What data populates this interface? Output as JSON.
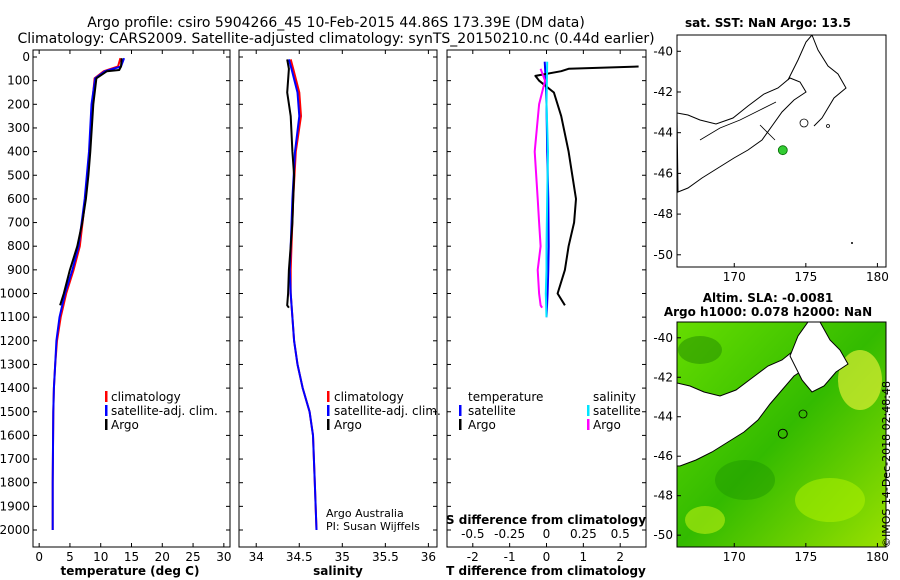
{
  "title": {
    "line1": "Argo profile: csiro 5904266_45 10-Feb-2015 44.86S 173.39E (DM data)",
    "line2": "Climatology: CARS2009. Satellite-adjusted climatology: synTS_20150210.nc (0.44d earlier)"
  },
  "colors": {
    "climatology": "#ff0000",
    "satellite": "#0000ff",
    "argo": "#000000",
    "sal_satellite": "#00e5ff",
    "sal_argo": "#ff00ff",
    "land": "#ffffff",
    "ocean_green": "#33cc00",
    "spot": "#33cc33"
  },
  "chart_data": [
    {
      "type": "line",
      "id": "temperature",
      "xlabel": "temperature (deg C)",
      "xlim": [
        -1,
        31
      ],
      "xticks": [
        0,
        5,
        10,
        15,
        20,
        25,
        30
      ],
      "xticklabels": [
        "0",
        "5",
        "10",
        "15",
        "20",
        "25",
        "30"
      ],
      "ylim": [
        2050,
        0
      ],
      "yticks": [
        0,
        100,
        200,
        300,
        400,
        500,
        600,
        700,
        800,
        900,
        1000,
        1100,
        1200,
        1300,
        1400,
        1500,
        1600,
        1700,
        1800,
        1900,
        2000
      ],
      "yticklabels": [
        "0",
        "100",
        "200",
        "300",
        "400",
        "500",
        "600",
        "700",
        "800",
        "900",
        "1000",
        "1100",
        "1200",
        "1300",
        "1400",
        "1500",
        "1600",
        "1700",
        "1800",
        "1900",
        "2000"
      ],
      "legend": [
        "climatology",
        "satellite-adj. clim.",
        "Argo"
      ],
      "series": [
        {
          "name": "climatology",
          "color": "#ff0000",
          "x": [
            13.2,
            12.8,
            10.5,
            9.0,
            8.6,
            8.2,
            7.5,
            6.6,
            5.6,
            4.4,
            3.5,
            2.9,
            2.6,
            2.4,
            2.3,
            2.2,
            2.2
          ],
          "y": [
            5,
            40,
            60,
            90,
            200,
            400,
            600,
            800,
            900,
            1000,
            1100,
            1200,
            1300,
            1400,
            1500,
            1800,
            2000
          ]
        },
        {
          "name": "satellite-adj. clim.",
          "color": "#0000ff",
          "x": [
            13.8,
            13.3,
            10.7,
            9.1,
            8.5,
            8.1,
            7.4,
            6.4,
            5.4,
            4.2,
            3.3,
            2.8,
            2.6,
            2.4,
            2.3,
            2.2,
            2.2
          ],
          "y": [
            5,
            40,
            60,
            90,
            200,
            400,
            600,
            800,
            900,
            1000,
            1100,
            1200,
            1300,
            1400,
            1500,
            1800,
            2000
          ]
        },
        {
          "name": "Argo",
          "color": "#000000",
          "x": [
            13.4,
            13.3,
            13.0,
            11.0,
            9.3,
            8.8,
            8.3,
            8.0,
            7.6,
            7.0,
            6.2,
            5.0,
            4.0,
            3.4
          ],
          "y": [
            5,
            40,
            55,
            60,
            90,
            200,
            400,
            500,
            600,
            700,
            800,
            900,
            1000,
            1050
          ]
        }
      ]
    },
    {
      "type": "line",
      "id": "salinity",
      "xlabel": "salinity",
      "xlim": [
        33.8,
        36.1
      ],
      "xticks": [
        34,
        34.5,
        35,
        35.5,
        36
      ],
      "xticklabels": [
        "34",
        "34.5",
        "35",
        "35.5",
        "36"
      ],
      "ylim": [
        2050,
        0
      ],
      "legend": [
        "climatology",
        "satellite-adj. clim.",
        "Argo"
      ],
      "note_line1": "Argo Australia",
      "note_line2": "PI: Susan Wijffels",
      "series": [
        {
          "name": "climatology",
          "color": "#ff0000",
          "x": [
            34.4,
            34.43,
            34.5,
            34.52,
            34.46,
            34.43,
            34.41,
            34.4,
            34.4,
            34.42,
            34.44,
            34.48,
            34.54,
            34.62,
            34.66,
            34.68,
            34.7
          ],
          "y": [
            10,
            50,
            150,
            250,
            400,
            600,
            800,
            900,
            1000,
            1100,
            1200,
            1300,
            1400,
            1500,
            1600,
            1800,
            2000
          ]
        },
        {
          "name": "satellite-adj. clim.",
          "color": "#0000ff",
          "x": [
            34.38,
            34.41,
            34.48,
            34.5,
            34.45,
            34.42,
            34.4,
            34.39,
            34.4,
            34.42,
            34.44,
            34.48,
            34.54,
            34.62,
            34.66,
            34.68,
            34.7
          ],
          "y": [
            10,
            50,
            150,
            250,
            400,
            600,
            800,
            900,
            1000,
            1100,
            1200,
            1300,
            1400,
            1500,
            1600,
            1800,
            2000
          ]
        },
        {
          "name": "Argo",
          "color": "#000000",
          "x": [
            34.36,
            34.38,
            34.36,
            34.4,
            34.42,
            34.44,
            34.43,
            34.42,
            34.4,
            34.38,
            34.37,
            34.36,
            34.38
          ],
          "y": [
            10,
            50,
            150,
            250,
            400,
            500,
            600,
            700,
            800,
            900,
            1000,
            1050,
            1060
          ]
        }
      ]
    },
    {
      "type": "line",
      "id": "difference",
      "xlabel": "T difference from climatology",
      "xlim": [
        -2.7,
        2.7
      ],
      "xticks": [
        -2,
        -1,
        0,
        1,
        2
      ],
      "xticklabels": [
        "-2",
        "-1",
        "0",
        "1",
        "2"
      ],
      "secondary_xlabel": "S difference from climatology",
      "secondary_xticks": [
        -0.5,
        -0.25,
        0,
        0.25,
        0.5
      ],
      "secondary_xticklabels": [
        "-0.5",
        "-0.25",
        "0",
        "0.25",
        "0.5"
      ],
      "ylim": [
        2050,
        0
      ],
      "legend_headers": [
        "temperature",
        "salinity"
      ],
      "legend": [
        "satellite",
        "Argo",
        "satellite",
        "Argo"
      ],
      "series": [
        {
          "name": "temperature satellite",
          "color": "#0000ff",
          "x": [
            -0.05,
            -0.02,
            0.0,
            0.02,
            0.05,
            0.06,
            0.05,
            0.03,
            0.0
          ],
          "y": [
            20,
            100,
            200,
            400,
            600,
            800,
            900,
            1000,
            1100
          ]
        },
        {
          "name": "temperature Argo",
          "color": "#000000",
          "x": [
            2.5,
            0.6,
            0.4,
            -0.3,
            -0.2,
            0.2,
            0.4,
            0.6,
            0.7,
            0.8,
            0.75,
            0.6,
            0.5,
            0.3,
            0.5
          ],
          "y": [
            40,
            50,
            60,
            80,
            100,
            150,
            250,
            400,
            500,
            600,
            700,
            800,
            900,
            1000,
            1050
          ]
        },
        {
          "name": "salinity satellite",
          "color": "#00e5ff",
          "x": [
            0.005,
            0.0,
            0.01,
            0.005,
            0.0,
            0.0,
            -0.005,
            0.0
          ],
          "y": [
            20,
            200,
            400,
            600,
            800,
            900,
            1000,
            1100
          ]
        },
        {
          "name": "salinity Argo",
          "color": "#ff00ff",
          "x": [
            -0.04,
            -0.01,
            -0.05,
            -0.08,
            -0.06,
            -0.05,
            -0.04,
            -0.06,
            -0.05,
            -0.04,
            -0.03
          ],
          "y": [
            50,
            100,
            200,
            400,
            600,
            700,
            800,
            900,
            1000,
            1050,
            1060
          ]
        }
      ]
    }
  ],
  "map_top": {
    "title": "sat. SST: NaN Argo: 13.5",
    "xticks": [
      "170",
      "175",
      "180"
    ],
    "yticks": [
      "-40",
      "-42",
      "-44",
      "-46",
      "-48",
      "-50"
    ],
    "float_lon": 173.39,
    "float_lat": -44.86
  },
  "map_bottom": {
    "title_line1": "Altim. SLA: -0.0081",
    "title_line2": "Argo h1000: 0.078 h2000: NaN",
    "xticks": [
      "170",
      "175",
      "180"
    ],
    "yticks": [
      "-40",
      "-42",
      "-44",
      "-46",
      "-48",
      "-50"
    ],
    "float_lon": 173.39,
    "float_lat": -44.86
  },
  "watermark": "©IMOS 14-Dec-2018 02:48:48"
}
